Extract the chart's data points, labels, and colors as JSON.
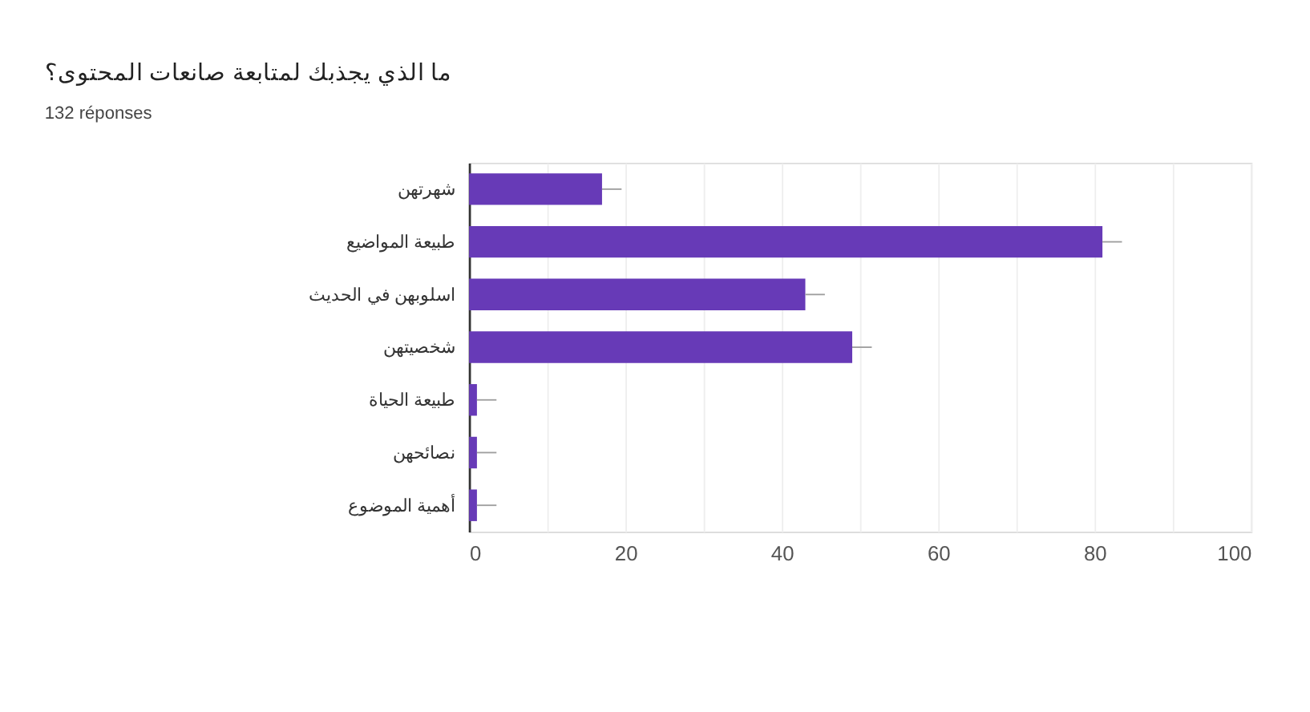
{
  "chart_data": {
    "type": "bar",
    "orientation": "horizontal",
    "title": "ما الذي يجذبك لمتابعة صانعات المحتوى؟",
    "subtitle": "132 réponses",
    "categories": [
      "شهرتهن",
      "طبيعة المواضيع",
      "اسلوبهن في الحديث",
      "شخصيتهن",
      "طبيعة الحياة",
      "نصائحهن",
      "أهمية الموضوع"
    ],
    "values": [
      17,
      81,
      43,
      49,
      1,
      1,
      1
    ],
    "errors": [
      [
        17,
        19.5
      ],
      [
        81,
        83.5
      ],
      [
        43,
        45.5
      ],
      [
        49,
        51.5
      ],
      [
        1,
        3.5
      ],
      [
        1,
        3.5
      ],
      [
        1,
        3.5
      ]
    ],
    "color": "#673ab7",
    "xlim": [
      0,
      100
    ],
    "xticks": [
      0,
      {
        "value": 10,
        "label": null
      },
      20,
      {
        "value": 30,
        "label": null
      },
      40,
      {
        "value": 50,
        "label": null
      },
      60,
      {
        "value": 70,
        "label": null
      },
      80,
      {
        "value": 90,
        "label": null
      },
      100
    ],
    "grid": "x"
  }
}
